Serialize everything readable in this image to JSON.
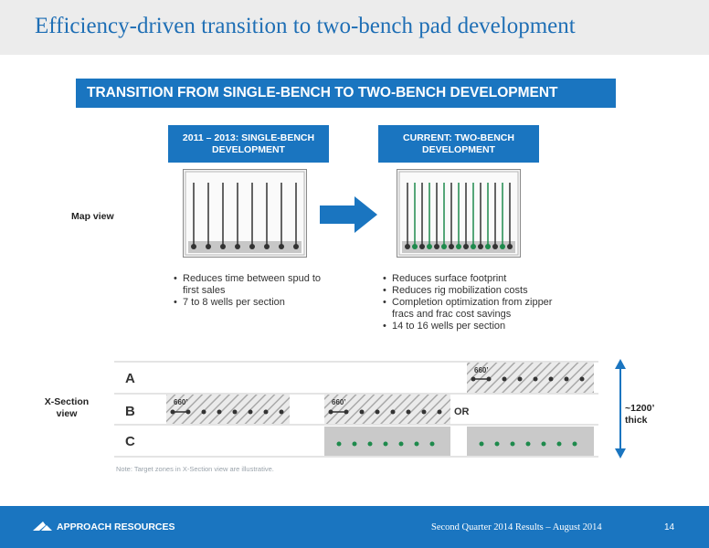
{
  "header": {
    "title": "Efficiency-driven transition to two-bench pad development"
  },
  "banner": {
    "text": "TRANSITION FROM SINGLE-BENCH TO TWO-BENCH DEVELOPMENT"
  },
  "left_panel": {
    "header_line1": "2011 – 2013: SINGLE-BENCH",
    "header_line2": "DEVELOPMENT",
    "bullets": [
      "Reduces time between spud to first sales",
      "7 to 8 wells per section"
    ]
  },
  "right_panel": {
    "header_line1": "CURRENT:  TWO-BENCH",
    "header_line2": "DEVELOPMENT",
    "bullets": [
      "Reduces surface footprint",
      "Reduces rig mobilization costs",
      "Completion optimization from zipper fracs and frac cost savings",
      "14 to 16 wells per section"
    ]
  },
  "map_view_label": "Map view",
  "x_section": {
    "label_line1": "X-Section",
    "label_line2": "view",
    "rows": [
      "A",
      "B",
      "C"
    ],
    "spacing_label": "660’",
    "or_label": "OR",
    "thickness_line1": "~1200’",
    "thickness_line2": "thick"
  },
  "note": "Note: Target zones in X-Section view are illustrative.",
  "colors": {
    "brand_blue": "#1a75c0",
    "title_blue": "#1f6fb5",
    "well_green": "#1e8a4c",
    "well_dark": "#333333"
  },
  "footer": {
    "company": "APPROACH RESOURCES",
    "center": "Second Quarter 2014 Results – August 2014",
    "page": "14"
  }
}
